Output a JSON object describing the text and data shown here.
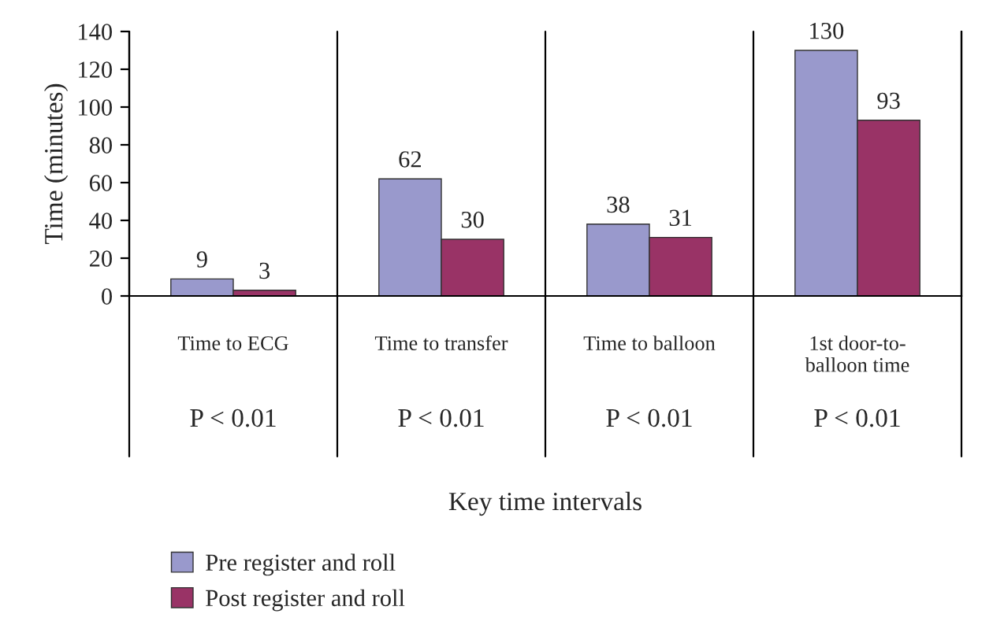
{
  "chart_data": {
    "type": "bar",
    "ylabel": "Time (minutes)",
    "xlabel": "Key time intervals",
    "categories": [
      "Time to ECG",
      "Time to transfer",
      "Time to balloon",
      "1st door-to-\nballoon time"
    ],
    "series": [
      {
        "name": "Pre register and roll",
        "color": "#9999cc",
        "values": [
          9,
          62,
          38,
          130
        ]
      },
      {
        "name": "Post register and roll",
        "color": "#993366",
        "values": [
          3,
          30,
          31,
          93
        ]
      }
    ],
    "ylim": [
      0,
      140
    ],
    "yticks": [
      0,
      20,
      40,
      60,
      80,
      100,
      120,
      140
    ],
    "data_labels": true,
    "legend": "bottom left",
    "grid": false,
    "annotations": [
      "P < 0.01",
      "P < 0.01",
      "P < 0.01",
      "P < 0.01"
    ]
  }
}
